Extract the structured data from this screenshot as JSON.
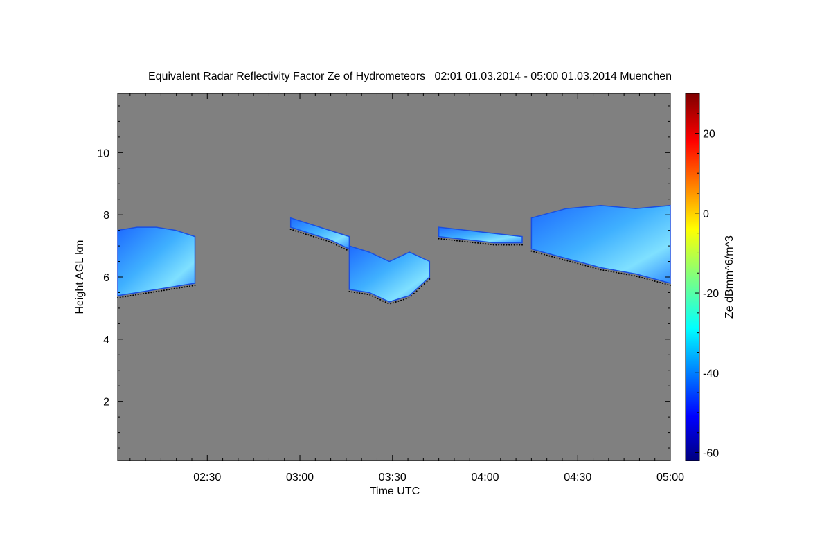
{
  "chart_data": {
    "type": "heatmap",
    "title": "Equivalent Radar Reflectivity Factor Ze of Hydrometeors   02:01 01.03.2014 - 05:00 01.03.2014 Muenchen",
    "xlabel": "Time UTC",
    "ylabel": "Height AGL km",
    "xlim": [
      "02:01",
      "05:00"
    ],
    "ylim": [
      0.1,
      11.9
    ],
    "x_ticks": [
      "02:30",
      "03:00",
      "03:30",
      "04:00",
      "04:30",
      "05:00"
    ],
    "y_ticks": [
      "2",
      "4",
      "6",
      "8",
      "10"
    ],
    "background_color": "#808080",
    "colorbar": {
      "label": "Ze dBmm^6/m^3",
      "range": [
        -62,
        30
      ],
      "ticks": [
        "-60",
        "-40",
        "-20",
        "0",
        "20"
      ],
      "colormap": "jet"
    },
    "echo_regions": [
      {
        "name": "echo-block-1",
        "time": [
          "02:01",
          "02:26"
        ],
        "top_km": [
          7.5,
          7.6,
          7.6,
          7.5,
          7.3
        ],
        "base_km": [
          5.4,
          5.5,
          5.6,
          5.7,
          5.8
        ],
        "ze_dbz": -25
      },
      {
        "name": "echo-block-2",
        "time": [
          "02:57",
          "03:16"
        ],
        "top_km": [
          7.9,
          7.7,
          7.5,
          7.3
        ],
        "base_km": [
          7.6,
          7.4,
          7.2,
          6.9
        ],
        "ze_dbz": -38
      },
      {
        "name": "echo-block-3",
        "time": [
          "03:16",
          "03:42"
        ],
        "top_km": [
          7.0,
          6.8,
          6.5,
          6.8,
          6.5
        ],
        "base_km": [
          5.6,
          5.5,
          5.2,
          5.4,
          6.0
        ],
        "ze_dbz": -30
      },
      {
        "name": "echo-block-4",
        "time": [
          "03:45",
          "04:12"
        ],
        "top_km": [
          7.6,
          7.5,
          7.4,
          7.3
        ],
        "base_km": [
          7.3,
          7.2,
          7.1,
          7.1
        ],
        "ze_dbz": -40
      },
      {
        "name": "echo-block-5",
        "time": [
          "04:15",
          "05:00"
        ],
        "top_km": [
          7.9,
          8.2,
          8.3,
          8.2,
          8.3
        ],
        "base_km": [
          6.9,
          6.6,
          6.3,
          6.1,
          5.8
        ],
        "ze_dbz": -28
      }
    ]
  }
}
